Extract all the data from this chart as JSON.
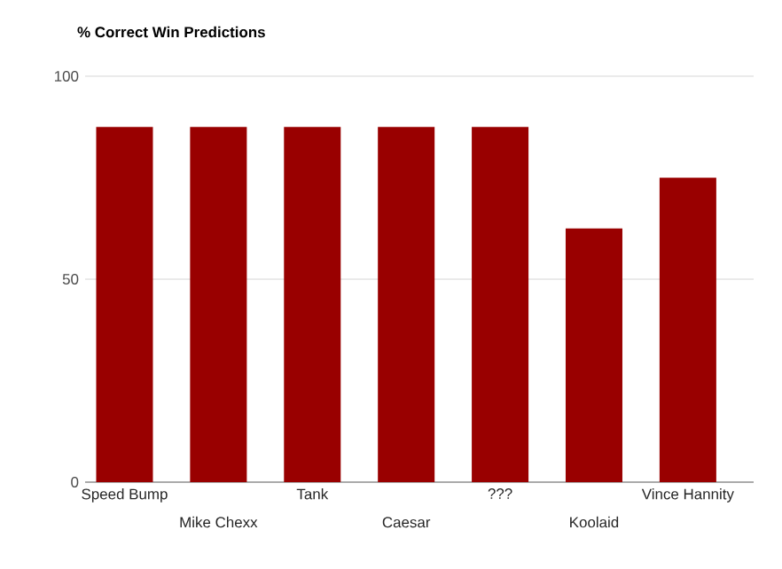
{
  "chart_data": {
    "type": "bar",
    "title": "% Correct Win Predictions",
    "categories": [
      "Speed Bump",
      "Mike Chexx",
      "Tank",
      "Caesar",
      "???",
      "Koolaid",
      "Vince Hannity"
    ],
    "values": [
      87.5,
      87.5,
      87.5,
      87.5,
      87.5,
      62.5,
      75
    ],
    "color": "#990000",
    "ylim": [
      0,
      100
    ],
    "yticks": [
      0,
      50,
      100
    ],
    "grid": "y"
  }
}
